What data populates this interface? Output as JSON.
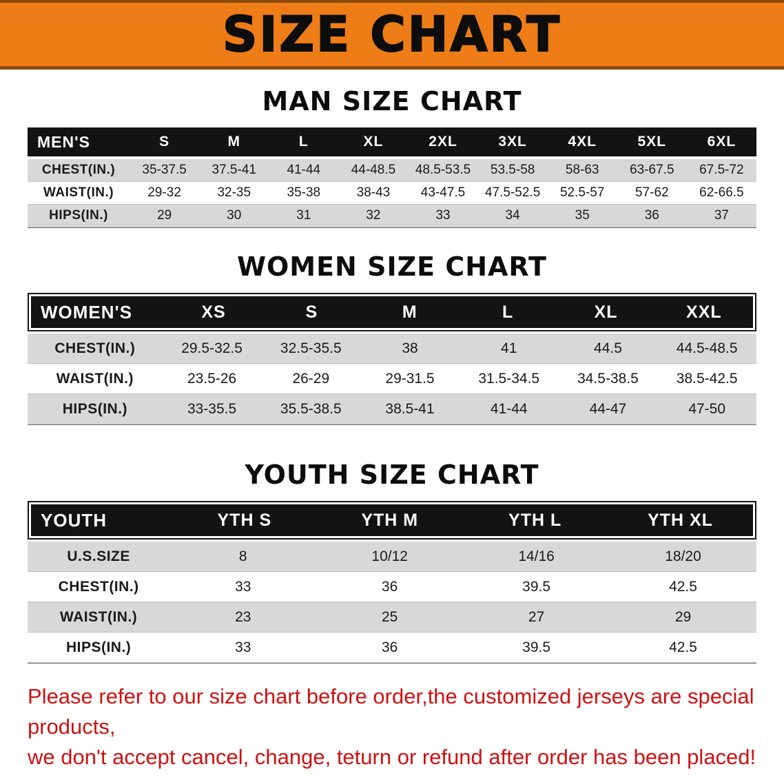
{
  "banner": {
    "title": "SIZE CHART"
  },
  "men": {
    "heading": "MAN SIZE CHART",
    "table_label": "MEN'S",
    "sizes": [
      "S",
      "M",
      "L",
      "XL",
      "2XL",
      "3XL",
      "4XL",
      "5XL",
      "6XL"
    ],
    "rows": [
      {
        "label": "CHEST(IN.)",
        "values": [
          "35-37.5",
          "37.5-41",
          "41-44",
          "44-48.5",
          "48.5-53.5",
          "53.5-58",
          "58-63",
          "63-67.5",
          "67.5-72"
        ]
      },
      {
        "label": "WAIST(IN.)",
        "values": [
          "29-32",
          "32-35",
          "35-38",
          "38-43",
          "43-47.5",
          "47.5-52.5",
          "52.5-57",
          "57-62",
          "62-66.5"
        ]
      },
      {
        "label": "HIPS(IN.)",
        "values": [
          "29",
          "30",
          "31",
          "32",
          "33",
          "34",
          "35",
          "36",
          "37"
        ]
      }
    ]
  },
  "women": {
    "heading": "WOMEN SIZE CHART",
    "table_label": "WOMEN'S",
    "sizes": [
      "XS",
      "S",
      "M",
      "L",
      "XL",
      "XXL"
    ],
    "rows": [
      {
        "label": "CHEST(IN.)",
        "values": [
          "29.5-32.5",
          "32.5-35.5",
          "38",
          "41",
          "44.5",
          "44.5-48.5"
        ]
      },
      {
        "label": "WAIST(IN.)",
        "values": [
          "23.5-26",
          "26-29",
          "29-31.5",
          "31.5-34.5",
          "34.5-38.5",
          "38.5-42.5"
        ]
      },
      {
        "label": "HIPS(IN.)",
        "values": [
          "33-35.5",
          "35.5-38.5",
          "38.5-41",
          "41-44",
          "44-47",
          "47-50"
        ]
      }
    ]
  },
  "youth": {
    "heading": "YOUTH SIZE CHART",
    "table_label": "YOUTH",
    "sizes": [
      "YTH S",
      "YTH M",
      "YTH L",
      "YTH XL"
    ],
    "rows": [
      {
        "label": "U.S.SIZE",
        "values": [
          "8",
          "10/12",
          "14/16",
          "18/20"
        ]
      },
      {
        "label": "CHEST(IN.)",
        "values": [
          "33",
          "36",
          "39.5",
          "42.5"
        ]
      },
      {
        "label": "WAIST(IN.)",
        "values": [
          "23",
          "25",
          "27",
          "29"
        ]
      },
      {
        "label": "HIPS(IN.)",
        "values": [
          "33",
          "36",
          "39.5",
          "42.5"
        ]
      }
    ]
  },
  "footer": {
    "line1": "Please refer to our size chart before order,the customized jerseys are special products,",
    "line2": "we don't accept cancel, change, teturn or refund after order has been placed!"
  },
  "colors": {
    "banner_bg": "#ee7d17",
    "header_bg": "#131313",
    "row_alt_bg": "#d8d8d8",
    "note_color": "#cf1111"
  }
}
